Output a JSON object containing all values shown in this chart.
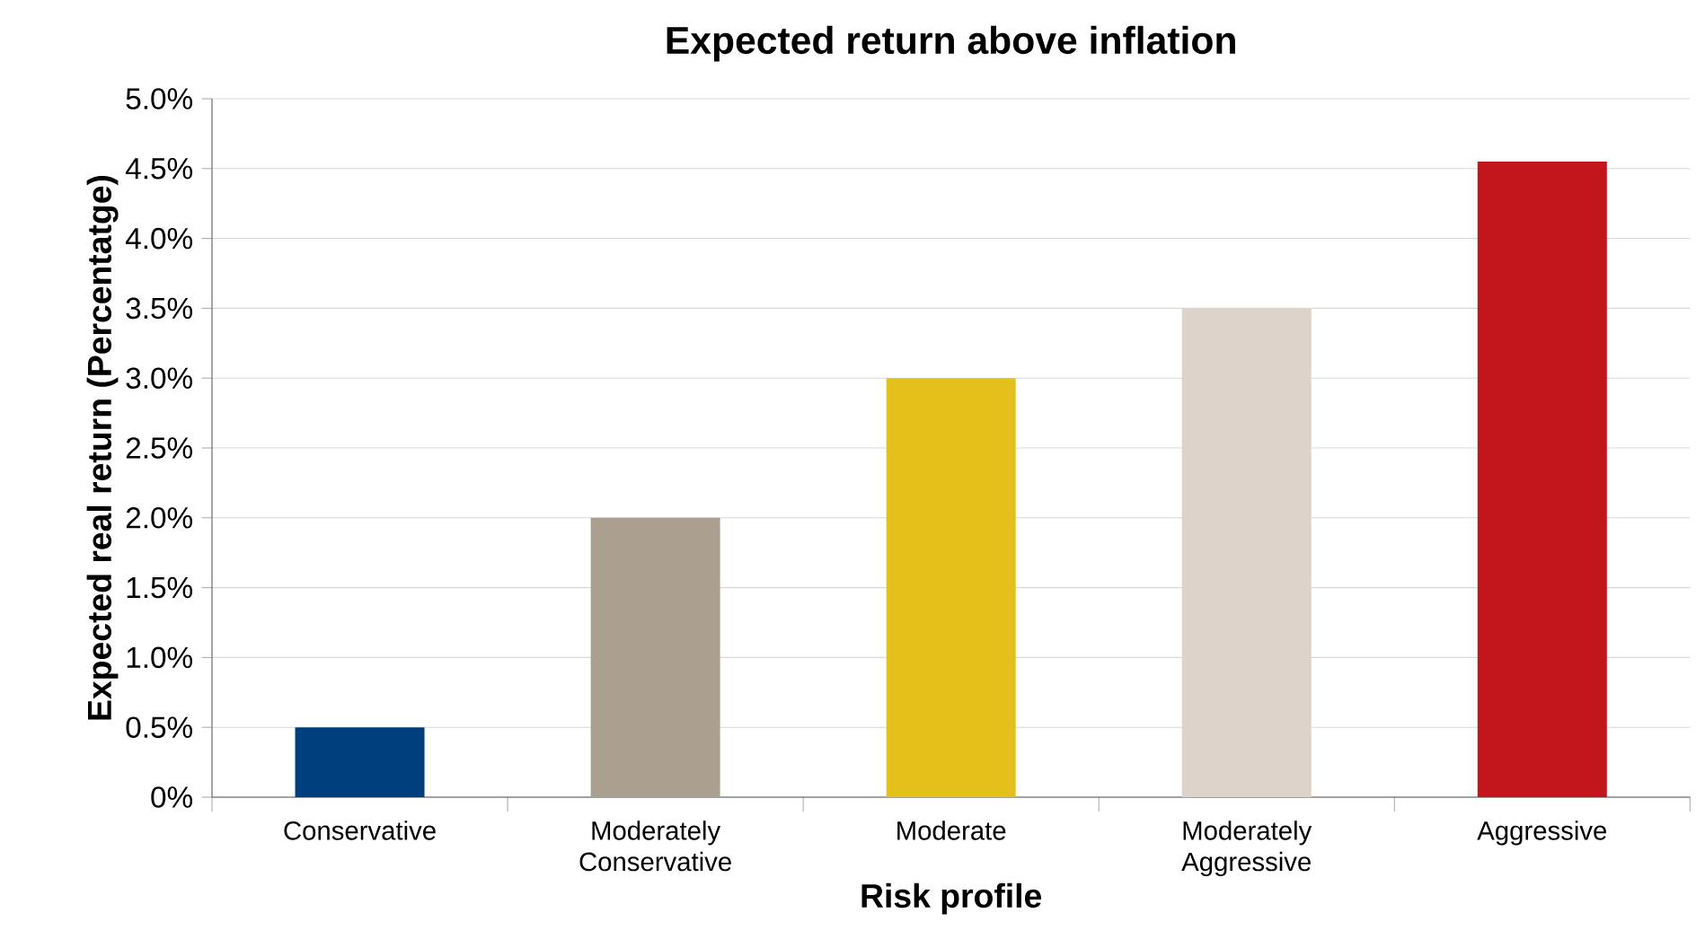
{
  "chart_data": {
    "type": "bar",
    "title": "Expected return above inflation",
    "xlabel": "Risk profile",
    "ylabel": "Expected real return (Percentatge)",
    "categories": [
      "Conservative",
      "Moderately Conservative",
      "Moderate",
      "Moderately Aggressive",
      "Aggressive"
    ],
    "values": [
      0.5,
      2.0,
      3.0,
      3.5,
      4.55
    ],
    "colors": [
      "#003f7d",
      "#ab9f8f",
      "#e3c11a",
      "#ddd3ca",
      "#c3161c"
    ],
    "ylim": [
      0,
      5
    ],
    "yticks": [
      {
        "value": 0,
        "label": "0%"
      },
      {
        "value": 0.5,
        "label": "0.5%"
      },
      {
        "value": 1,
        "label": "1.0%"
      },
      {
        "value": 1.5,
        "label": "1.5%"
      },
      {
        "value": 2,
        "label": "2.0%"
      },
      {
        "value": 2.5,
        "label": "2.5%"
      },
      {
        "value": 3,
        "label": "3.0%"
      },
      {
        "value": 3.5,
        "label": "3.5%"
      },
      {
        "value": 4,
        "label": "4.0%"
      },
      {
        "value": 4.5,
        "label": "4.5%"
      },
      {
        "value": 5,
        "label": "5.0%"
      }
    ],
    "grid": "y"
  }
}
